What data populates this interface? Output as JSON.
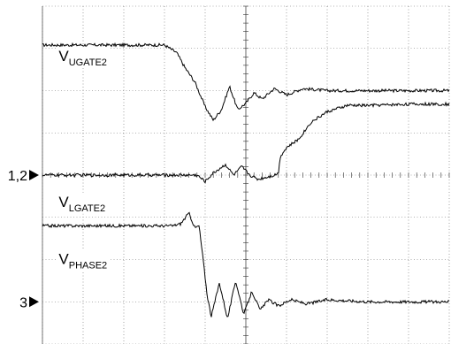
{
  "chart_data": {
    "type": "line",
    "grid": true,
    "divisions": {
      "x": 10,
      "y": 8
    },
    "xlim": [
      0,
      10
    ],
    "ylim": [
      -4,
      4
    ],
    "markers": [
      {
        "label": "1,2",
        "y": 0
      },
      {
        "label": "3",
        "y": -3
      }
    ],
    "series": [
      {
        "name": "UGATE2",
        "label_main": "V",
        "label_sub": "UGATE2",
        "label_pos": {
          "x": 0.4,
          "y": 2.7
        },
        "x": [
          0.0,
          2.0,
          3.0,
          3.3,
          3.5,
          3.75,
          4.0,
          4.2,
          4.4,
          4.6,
          4.8,
          5.0,
          5.2,
          5.4,
          5.7,
          6.0,
          6.4,
          7.0,
          8.0,
          9.0,
          10.0
        ],
        "values": [
          3.08,
          3.08,
          3.08,
          2.9,
          2.55,
          2.2,
          1.62,
          1.3,
          1.55,
          2.1,
          1.55,
          1.7,
          1.95,
          1.8,
          2.05,
          1.9,
          2.05,
          2.0,
          2.0,
          2.0,
          2.0
        ]
      },
      {
        "name": "LGATE2",
        "label_main": "V",
        "label_sub": "LGATE2",
        "label_pos": {
          "x": 0.4,
          "y": -0.75
        },
        "x": [
          0.0,
          3.0,
          3.8,
          4.0,
          4.2,
          4.5,
          4.7,
          4.9,
          5.1,
          5.3,
          5.5,
          5.7,
          5.8,
          5.85,
          6.0,
          6.3,
          6.6,
          7.0,
          7.5,
          8.0,
          9.0,
          10.0
        ],
        "values": [
          0.0,
          0.0,
          0.0,
          -0.15,
          0.05,
          0.25,
          0.0,
          0.2,
          0.0,
          -0.1,
          -0.05,
          0.0,
          0.05,
          0.45,
          0.65,
          0.85,
          1.25,
          1.5,
          1.65,
          1.65,
          1.68,
          1.68
        ]
      },
      {
        "name": "PHASE2",
        "label_main": "V",
        "label_sub": "PHASE2",
        "label_pos": {
          "x": 0.4,
          "y": -2.1
        },
        "x": [
          0.0,
          3.0,
          3.2,
          3.4,
          3.6,
          3.75,
          3.85,
          3.95,
          4.05,
          4.15,
          4.35,
          4.55,
          4.75,
          4.95,
          5.15,
          5.35,
          5.55,
          5.8,
          6.1,
          6.5,
          7.0,
          8.0,
          9.0,
          10.0
        ],
        "values": [
          -1.2,
          -1.2,
          -1.2,
          -1.15,
          -0.9,
          -1.25,
          -1.2,
          -2.0,
          -2.85,
          -3.35,
          -2.55,
          -3.4,
          -2.5,
          -3.3,
          -2.75,
          -3.2,
          -2.95,
          -3.1,
          -2.95,
          -3.05,
          -2.95,
          -3.0,
          -3.0,
          -3.0
        ]
      }
    ]
  }
}
